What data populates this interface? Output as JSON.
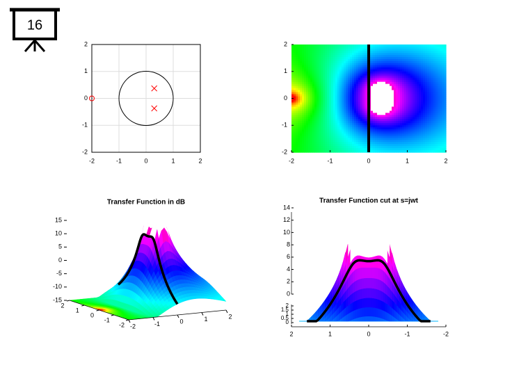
{
  "slide_number": "16",
  "chart_data": [
    {
      "type": "pole-zero",
      "xlim": [
        -2,
        2
      ],
      "ylim": [
        -2,
        2
      ],
      "xticks": [
        -2,
        -1,
        0,
        1,
        2
      ],
      "yticks": [
        -2,
        -1,
        0,
        1,
        2
      ],
      "grid": true,
      "color": "#ff0000",
      "zeros": {
        "x": [
          -2
        ],
        "y": [
          0
        ]
      },
      "poles": {
        "x": [
          0.3,
          0.3
        ],
        "y": [
          0.37,
          -0.37
        ]
      }
    },
    {
      "type": "heatmap",
      "xlim": [
        -2,
        2
      ],
      "ylim": [
        -2,
        2
      ],
      "xticks": [
        -2,
        -1,
        0,
        1,
        2
      ],
      "yticks": [
        -2,
        -1,
        0,
        1,
        2
      ],
      "cut_x": 0
    },
    {
      "type": "surface3d",
      "title": "Transfer Function in dB",
      "xlim": [
        -2,
        2
      ],
      "ylim": [
        -2,
        2
      ],
      "zlim": [
        -15,
        15
      ],
      "xticks": [
        -2,
        -1,
        0,
        1,
        2
      ],
      "yticks": [
        2,
        1,
        0,
        -1,
        -2
      ],
      "zticks": [
        -15,
        -10,
        -5,
        0,
        5,
        10,
        15
      ]
    },
    {
      "type": "surface-cut",
      "title": "Transfer Function cut at s=jwt",
      "xlim": [
        2,
        -2
      ],
      "xticks": [
        2,
        1,
        0,
        -1,
        -2
      ],
      "zticks": [
        0,
        2,
        4,
        6,
        8,
        10,
        12,
        14
      ],
      "depth_ticks": [
        0,
        0.5,
        1,
        1.5,
        2
      ]
    }
  ]
}
